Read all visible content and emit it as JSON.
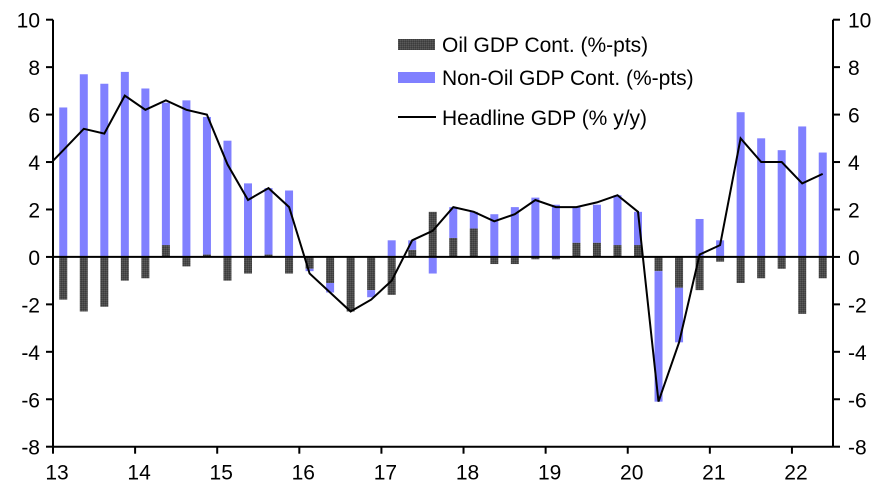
{
  "chart_data": {
    "type": "bar",
    "subtype": "stacked-bar-with-line",
    "title": "",
    "xlabel": "",
    "ylabel": "",
    "ylim": [
      -8,
      10
    ],
    "yticks": [
      -8,
      -6,
      -4,
      -2,
      0,
      2,
      4,
      6,
      8,
      10
    ],
    "y2lim": [
      -8,
      10
    ],
    "y2ticks": [
      -8,
      -6,
      -4,
      -2,
      0,
      2,
      4,
      6,
      8,
      10
    ],
    "xtick_labels": [
      "13",
      "14",
      "15",
      "16",
      "17",
      "18",
      "19",
      "20",
      "21",
      "22"
    ],
    "grid": false,
    "legend_position": "top-center",
    "categories": [
      "2013Q1",
      "2013Q2",
      "2013Q3",
      "2013Q4",
      "2014Q1",
      "2014Q2",
      "2014Q3",
      "2014Q4",
      "2015Q1",
      "2015Q2",
      "2015Q3",
      "2015Q4",
      "2016Q1",
      "2016Q2",
      "2016Q3",
      "2016Q4",
      "2017Q1",
      "2017Q2",
      "2017Q3",
      "2017Q4",
      "2018Q1",
      "2018Q2",
      "2018Q3",
      "2018Q4",
      "2019Q1",
      "2019Q2",
      "2019Q3",
      "2019Q4",
      "2020Q1",
      "2020Q2",
      "2020Q3",
      "2020Q4",
      "2021Q1",
      "2021Q2",
      "2021Q3",
      "2021Q4",
      "2022Q1",
      "2022Q2"
    ],
    "series": [
      {
        "name": "Oil GDP Cont. (%-pts)",
        "kind": "bar",
        "color": "#4d4d4d",
        "values": [
          -1.8,
          -2.3,
          -2.1,
          -1.0,
          -0.9,
          0.5,
          -0.4,
          0.1,
          -1.0,
          -0.7,
          0.1,
          -0.7,
          -0.5,
          -1.1,
          -2.3,
          -1.4,
          -1.6,
          0.3,
          1.9,
          0.8,
          1.2,
          -0.3,
          -0.3,
          -0.1,
          -0.1,
          0.6,
          0.6,
          0.5,
          0.5,
          -0.6,
          -1.3,
          -1.4,
          -0.2,
          -1.1,
          -0.9,
          -0.5,
          -2.4,
          -0.9
        ]
      },
      {
        "name": "Non-Oil GDP Cont. (%-pts)",
        "kind": "bar",
        "color": "#8080ff",
        "values": [
          6.3,
          7.7,
          7.3,
          7.8,
          7.1,
          6.0,
          6.6,
          5.8,
          4.9,
          3.1,
          2.8,
          2.8,
          -0.1,
          -0.4,
          0.0,
          -0.3,
          0.7,
          0.4,
          -0.7,
          1.3,
          0.7,
          1.8,
          2.1,
          2.5,
          2.2,
          1.5,
          1.6,
          2.1,
          1.4,
          -5.5,
          -2.3,
          1.6,
          0.7,
          6.1,
          5.0,
          4.5,
          5.5,
          4.4
        ]
      },
      {
        "name": "Headline GDP (% y/y)",
        "kind": "line",
        "color": "#000000",
        "values": [
          4.5,
          5.4,
          5.2,
          6.8,
          6.2,
          6.6,
          6.2,
          6.0,
          3.9,
          2.4,
          2.9,
          2.1,
          -0.7,
          -1.5,
          -2.3,
          -1.8,
          -1.0,
          0.7,
          1.1,
          2.1,
          1.9,
          1.5,
          1.8,
          2.4,
          2.1,
          2.1,
          2.3,
          2.6,
          1.9,
          -6.1,
          -3.6,
          0.1,
          0.5,
          5.0,
          4.0,
          4.0,
          3.1,
          3.5
        ]
      }
    ]
  }
}
